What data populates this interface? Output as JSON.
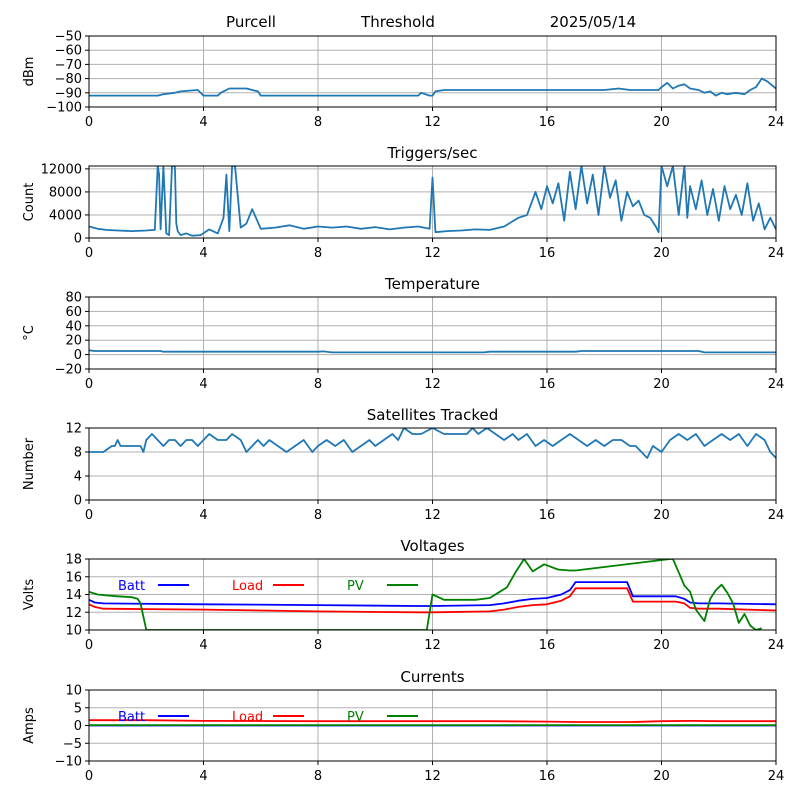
{
  "header": {
    "station": "Purcell",
    "mode": "Threshold",
    "date": "2025/05/14"
  },
  "colors": {
    "series": "#1f77b4",
    "batt": "#0000ff",
    "load": "#ff0000",
    "pv": "#008000",
    "grid": "#b0b0b0"
  },
  "chart_data": [
    {
      "id": "signal",
      "type": "line",
      "title": "",
      "xlabel": "",
      "ylabel": "dBm",
      "xlim": [
        0,
        24
      ],
      "ylim": [
        -100,
        -50
      ],
      "xticks": [
        "0",
        "4",
        "8",
        "12",
        "16",
        "20",
        "24"
      ],
      "yticks": [
        "−100",
        "−90",
        "−80",
        "−70",
        "−60",
        "−50"
      ],
      "grid": true,
      "series": [
        {
          "color": "series",
          "x": [
            0,
            2.4,
            2.6,
            3.0,
            3.2,
            3.8,
            4.0,
            4.5,
            4.6,
            4.9,
            5.5,
            5.9,
            6.0,
            7.0,
            8.0,
            9.0,
            10.0,
            11.0,
            11.5,
            11.6,
            11.9,
            12.0,
            12.1,
            12.4,
            13.0,
            14.0,
            15.0,
            16.0,
            17.0,
            18.0,
            18.5,
            18.9,
            19.0,
            19.5,
            19.9,
            20.0,
            20.2,
            20.4,
            20.6,
            20.8,
            21.0,
            21.3,
            21.5,
            21.7,
            21.9,
            22.1,
            22.3,
            22.6,
            22.9,
            23.1,
            23.3,
            23.5,
            23.7,
            24.0
          ],
          "y": [
            -92,
            -92,
            -91,
            -90,
            -89,
            -88,
            -92,
            -92,
            -90,
            -87,
            -87,
            -89,
            -92,
            -92,
            -92,
            -92,
            -92,
            -92,
            -92,
            -90,
            -92,
            -92,
            -89,
            -88,
            -88,
            -88,
            -88,
            -88,
            -88,
            -88,
            -87,
            -88,
            -88,
            -88,
            -88,
            -86,
            -83,
            -87,
            -85,
            -84,
            -87,
            -88,
            -90,
            -89,
            -92,
            -90,
            -91,
            -90,
            -91,
            -88,
            -86,
            -80,
            -82,
            -87
          ]
        }
      ]
    },
    {
      "id": "triggers",
      "type": "line",
      "title": "Triggers/sec",
      "xlabel": "",
      "ylabel": "Count",
      "xlim": [
        0,
        24
      ],
      "ylim": [
        0,
        12500
      ],
      "xticks": [
        "0",
        "4",
        "8",
        "12",
        "16",
        "20",
        "24"
      ],
      "yticks": [
        "0",
        "4000",
        "8000",
        "12000"
      ],
      "grid": true,
      "series": [
        {
          "color": "series",
          "x": [
            0,
            0.3,
            0.6,
            1.0,
            1.5,
            2.0,
            2.3,
            2.4,
            2.45,
            2.5,
            2.6,
            2.7,
            2.8,
            2.9,
            3.0,
            3.05,
            3.1,
            3.2,
            3.4,
            3.6,
            3.9,
            4.2,
            4.5,
            4.7,
            4.8,
            4.9,
            5.0,
            5.1,
            5.3,
            5.5,
            5.7,
            6.0,
            6.5,
            7.0,
            7.5,
            8.0,
            8.5,
            9.0,
            9.5,
            10.0,
            10.5,
            11.0,
            11.5,
            11.9,
            12.0,
            12.1,
            12.5,
            13.0,
            13.5,
            14.0,
            14.5,
            15.0,
            15.3,
            15.6,
            15.8,
            16.0,
            16.2,
            16.4,
            16.6,
            16.8,
            17.0,
            17.2,
            17.4,
            17.6,
            17.8,
            18.0,
            18.2,
            18.4,
            18.6,
            18.8,
            19.0,
            19.2,
            19.4,
            19.6,
            19.8,
            19.9,
            20.0,
            20.2,
            20.4,
            20.6,
            20.8,
            20.9,
            21.0,
            21.2,
            21.4,
            21.6,
            21.8,
            22.0,
            22.2,
            22.4,
            22.6,
            22.8,
            23.0,
            23.2,
            23.4,
            23.6,
            23.8,
            24.0
          ],
          "y": [
            2000,
            1600,
            1400,
            1300,
            1200,
            1300,
            1400,
            12500,
            11000,
            1500,
            12500,
            800,
            500,
            12500,
            12500,
            2500,
            1200,
            500,
            800,
            400,
            500,
            1500,
            800,
            3500,
            11000,
            1200,
            12500,
            12500,
            1800,
            2500,
            5000,
            1600,
            1800,
            2200,
            1600,
            2000,
            1800,
            2000,
            1600,
            1900,
            1500,
            1800,
            2000,
            1600,
            10500,
            1000,
            1200,
            1300,
            1500,
            1400,
            2000,
            3500,
            4000,
            8000,
            5000,
            9000,
            6000,
            9500,
            3000,
            11500,
            5000,
            12500,
            6000,
            11000,
            4000,
            12500,
            7000,
            10000,
            3000,
            8000,
            5500,
            6500,
            4000,
            3500,
            2000,
            1000,
            12500,
            9000,
            12500,
            4000,
            12500,
            3500,
            9000,
            5000,
            10000,
            4000,
            8500,
            3000,
            9000,
            5000,
            7500,
            4000,
            9500,
            3000,
            6000,
            1500,
            3500,
            1500
          ]
        }
      ]
    },
    {
      "id": "temperature",
      "type": "line",
      "title": "Temperature",
      "xlabel": "",
      "ylabel": "°C",
      "xlim": [
        0,
        24
      ],
      "ylim": [
        -20,
        80
      ],
      "xticks": [
        "0",
        "4",
        "8",
        "12",
        "16",
        "20",
        "24"
      ],
      "yticks": [
        "−20",
        "0",
        "20",
        "40",
        "60",
        "80"
      ],
      "grid": true,
      "series": [
        {
          "color": "series",
          "x": [
            0,
            0.2,
            0.5,
            2.5,
            2.6,
            4.0,
            8.0,
            8.2,
            8.4,
            8.5,
            10.0,
            12.0,
            13.8,
            14.0,
            16.0,
            17.0,
            17.2,
            20.0,
            21.3,
            21.5,
            24.0
          ],
          "y": [
            6,
            5,
            5,
            5,
            4,
            4,
            4,
            4.5,
            3.5,
            3,
            3,
            3,
            3,
            4,
            4,
            4,
            5,
            5,
            5,
            3,
            3
          ]
        }
      ]
    },
    {
      "id": "satellites",
      "type": "line",
      "title": "Satellites Tracked",
      "xlabel": "",
      "ylabel": "Number",
      "xlim": [
        0,
        24
      ],
      "ylim": [
        0,
        12
      ],
      "xticks": [
        "0",
        "4",
        "8",
        "12",
        "16",
        "20",
        "24"
      ],
      "yticks": [
        "0",
        "4",
        "8",
        "12"
      ],
      "grid": true,
      "series": [
        {
          "color": "series",
          "x": [
            0,
            0.5,
            0.8,
            0.9,
            1.0,
            1.1,
            1.5,
            1.8,
            1.9,
            2.0,
            2.2,
            2.4,
            2.6,
            2.8,
            3.0,
            3.2,
            3.4,
            3.6,
            3.8,
            4.0,
            4.2,
            4.5,
            4.8,
            5.0,
            5.3,
            5.5,
            5.7,
            5.9,
            6.1,
            6.3,
            6.6,
            6.9,
            7.2,
            7.5,
            7.8,
            8.0,
            8.3,
            8.6,
            8.9,
            9.2,
            9.5,
            9.8,
            10.0,
            10.3,
            10.6,
            10.8,
            11.0,
            11.3,
            11.6,
            12.0,
            12.4,
            12.8,
            13.2,
            13.4,
            13.6,
            13.9,
            14.2,
            14.5,
            14.8,
            15.0,
            15.3,
            15.6,
            15.9,
            16.2,
            16.5,
            16.8,
            17.1,
            17.4,
            17.7,
            18.0,
            18.3,
            18.6,
            18.9,
            19.1,
            19.3,
            19.5,
            19.7,
            20.0,
            20.3,
            20.6,
            20.9,
            21.2,
            21.5,
            21.8,
            22.1,
            22.4,
            22.7,
            23.0,
            23.3,
            23.6,
            23.8,
            24.0
          ],
          "y": [
            8,
            8,
            9,
            9,
            10,
            9,
            9,
            9,
            8,
            10,
            11,
            10,
            9,
            10,
            10,
            9,
            10,
            10,
            9,
            10,
            11,
            10,
            10,
            11,
            10,
            8,
            9,
            10,
            9,
            10,
            9,
            8,
            9,
            10,
            8,
            9,
            10,
            9,
            10,
            8,
            9,
            10,
            9,
            10,
            11,
            10,
            12,
            11,
            11,
            12,
            11,
            11,
            11,
            12,
            11,
            12,
            11,
            10,
            11,
            10,
            11,
            9,
            10,
            9,
            10,
            11,
            10,
            9,
            10,
            9,
            10,
            10,
            9,
            9,
            8,
            7,
            9,
            8,
            10,
            11,
            10,
            11,
            9,
            10,
            11,
            10,
            11,
            9,
            11,
            10,
            8,
            7
          ]
        }
      ]
    },
    {
      "id": "voltages",
      "type": "line",
      "title": "Voltages",
      "xlabel": "",
      "ylabel": "Volts",
      "xlim": [
        0,
        24
      ],
      "ylim": [
        10,
        18
      ],
      "xticks": [
        "0",
        "4",
        "8",
        "12",
        "16",
        "20",
        "24"
      ],
      "yticks": [
        "10",
        "12",
        "14",
        "16",
        "18"
      ],
      "grid": true,
      "legend": "top-left",
      "series": [
        {
          "name": "Batt",
          "color": "batt",
          "x": [
            0,
            0.2,
            0.5,
            4.0,
            8.0,
            11.5,
            12.0,
            14.0,
            14.5,
            15.0,
            15.5,
            16.0,
            16.5,
            16.8,
            17.0,
            17.5,
            18.0,
            18.8,
            19.0,
            19.5,
            20.0,
            20.5,
            20.8,
            21.0,
            21.3,
            22.0,
            24.0
          ],
          "y": [
            13.4,
            13.1,
            13.0,
            12.9,
            12.8,
            12.7,
            12.7,
            12.8,
            13.0,
            13.3,
            13.5,
            13.6,
            14.0,
            14.5,
            15.4,
            15.4,
            15.4,
            15.4,
            13.8,
            13.8,
            13.8,
            13.8,
            13.5,
            13.1,
            13.0,
            13.0,
            12.9
          ]
        },
        {
          "name": "Load",
          "color": "load",
          "x": [
            0,
            0.2,
            0.5,
            4.0,
            8.0,
            11.5,
            12.0,
            14.0,
            14.5,
            15.0,
            15.5,
            16.0,
            16.5,
            16.8,
            17.0,
            17.5,
            18.0,
            18.8,
            19.0,
            19.5,
            20.0,
            20.5,
            20.8,
            21.0,
            21.3,
            22.0,
            24.0
          ],
          "y": [
            12.9,
            12.6,
            12.4,
            12.3,
            12.1,
            12.0,
            12.0,
            12.1,
            12.3,
            12.6,
            12.8,
            12.9,
            13.3,
            13.8,
            14.7,
            14.7,
            14.7,
            14.7,
            13.2,
            13.2,
            13.2,
            13.2,
            13.0,
            12.5,
            12.4,
            12.4,
            12.2
          ]
        },
        {
          "name": "PV",
          "color": "pv",
          "x": [
            0,
            0.3,
            0.6,
            1.0,
            1.5,
            1.7,
            1.8,
            1.9,
            2.0,
            11.8,
            12.0,
            12.4,
            13.0,
            13.5,
            14.0,
            14.3,
            14.6,
            14.9,
            15.2,
            15.5,
            15.9,
            16.4,
            16.8,
            17.0,
            20.3,
            20.4,
            20.6,
            20.8,
            21.0,
            21.2,
            21.5,
            21.7,
            21.9,
            22.1,
            22.3,
            22.5,
            22.7,
            22.9,
            23.1,
            23.3,
            23.5
          ],
          "y": [
            14.3,
            14.0,
            13.9,
            13.8,
            13.7,
            13.5,
            13.0,
            11.5,
            10,
            10,
            14.0,
            13.4,
            13.4,
            13.4,
            13.6,
            14.2,
            14.8,
            16.5,
            18.0,
            16.6,
            17.4,
            16.8,
            16.7,
            16.7,
            18,
            18,
            16.5,
            15.0,
            14.3,
            12.3,
            11.0,
            13.5,
            14.5,
            15.1,
            14.2,
            13.0,
            10.8,
            11.8,
            10.5,
            10.0,
            10.2
          ]
        }
      ]
    },
    {
      "id": "currents",
      "type": "line",
      "title": "Currents",
      "xlabel": "",
      "ylabel": "Amps",
      "xlim": [
        0,
        24
      ],
      "ylim": [
        -10,
        10
      ],
      "xticks": [
        "0",
        "4",
        "8",
        "12",
        "16",
        "20",
        "24"
      ],
      "yticks": [
        "−10",
        "−5",
        "0",
        "5",
        "10"
      ],
      "grid": true,
      "legend": "top-left",
      "series": [
        {
          "name": "Batt",
          "color": "batt",
          "x": [
            0,
            24
          ],
          "y": [
            0,
            0
          ]
        },
        {
          "name": "Load",
          "color": "load",
          "x": [
            0,
            2.0,
            4.0,
            8.0,
            12.0,
            14.0,
            16.0,
            17.0,
            19.0,
            20.0,
            21.0,
            22.0,
            24.0
          ],
          "y": [
            1.5,
            1.5,
            1.3,
            1.2,
            1.2,
            1.2,
            1.1,
            1.0,
            1.0,
            1.2,
            1.3,
            1.2,
            1.2
          ]
        },
        {
          "name": "PV",
          "color": "pv",
          "x": [
            0,
            24
          ],
          "y": [
            0.1,
            0.1
          ]
        }
      ]
    }
  ]
}
